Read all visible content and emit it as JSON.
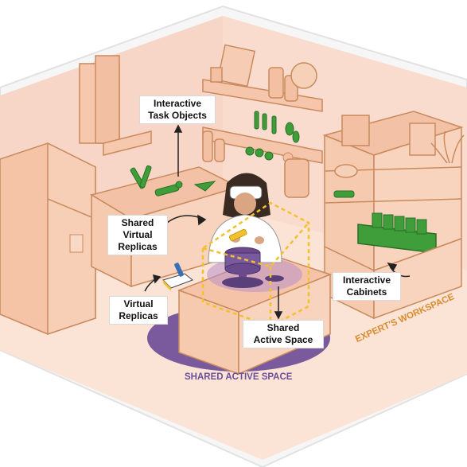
{
  "callouts": {
    "interactive_task_objects": [
      "Interactive",
      "Task Objects"
    ],
    "shared_virtual_replicas": [
      "Shared",
      "Virtual",
      "Replicas"
    ],
    "virtual_replicas": [
      "Virtual",
      "Replicas"
    ],
    "shared_active_space": [
      "Shared",
      "Active Space"
    ],
    "interactive_cabinets": [
      "Interactive",
      "Cabinets"
    ]
  },
  "floor_labels": {
    "shared_active_space": "SHARED ACTIVE SPACE",
    "experts_workspace": "EXPERT'S WORKSPACE"
  },
  "colors": {
    "wall": "#f8ddd0",
    "floor": "#fbe3d6",
    "line": "#c98a5e",
    "green": "#3f9e3a",
    "purple": "#7a5a9c",
    "yellow": "#f2c12e",
    "label_purple": "#6b4f9a",
    "label_orange": "#d98b2f"
  }
}
